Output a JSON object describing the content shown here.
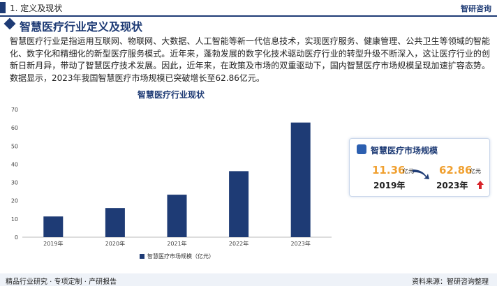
{
  "header": {
    "section": "1. 定义及现状",
    "brand": "智研咨询"
  },
  "section_title": "智慧医疗行业定义及现状",
  "paragraph": "智慧医疗行业是指运用互联网、物联网、大数据、人工智能等新一代信息技术，实现医疗服务、健康管理、公共卫生等领域的智能化、数字化和精细化的新型医疗服务模式。近年来，蓬勃发展的数字化技术驱动医疗行业的转型升级不断深入，这让医疗行业的创新日新月异，带动了智慧医疗技术发展。因此，近年来，在政策及市场的双重驱动下，国内智慧医疗市场规模呈现加速扩容态势。数据显示，2023年我国智慧医疗市场规模已突破增长至62.86亿元。",
  "chart_data": {
    "type": "bar",
    "title": "智慧医疗行业现状",
    "categories": [
      "2019年",
      "2020年",
      "2021年",
      "2022年",
      "2023年"
    ],
    "series": [
      {
        "name": "智慧医疗市场规模（亿元）",
        "color": "#1e3b75",
        "values": [
          11.36,
          16,
          23.3,
          36.2,
          62.86
        ]
      }
    ],
    "ylim": [
      0,
      70
    ],
    "yticks": [
      0,
      10,
      20,
      30,
      40,
      50,
      60,
      70
    ],
    "grid": false
  },
  "card": {
    "title": "智慧医疗市场规模",
    "left": {
      "value": 11.36,
      "unit": "亿元",
      "year": "2019年"
    },
    "right": {
      "value": 62.86,
      "unit": "亿元",
      "year": "2023年"
    }
  },
  "footer": {
    "left": "精品行业研究 · 专项定制 · 产研报告",
    "right": "资料来源：智研咨询整理"
  }
}
